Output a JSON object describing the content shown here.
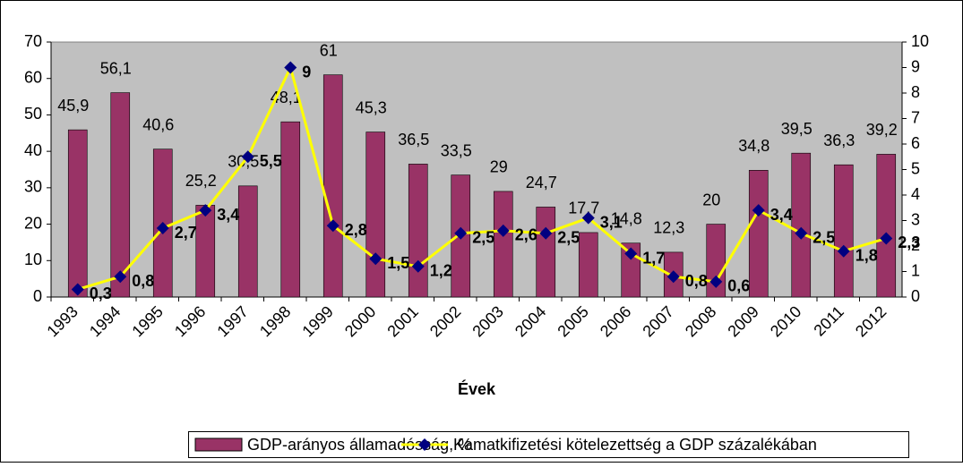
{
  "chart_data": {
    "type": "bar-line",
    "x_label": "Évek",
    "categories": [
      "1993",
      "1994",
      "1995",
      "1996",
      "1997",
      "1998",
      "1999",
      "2000",
      "2001",
      "2002",
      "2003",
      "2004",
      "2005",
      "2006",
      "2007",
      "2008",
      "2009",
      "2010",
      "2011",
      "2012"
    ],
    "series": [
      {
        "name": "GDP-arányos államadósság, %",
        "type": "bar",
        "color": "#993366",
        "values": [
          45.9,
          56.1,
          40.6,
          25.2,
          30.5,
          48.1,
          61,
          45.3,
          36.5,
          33.5,
          29,
          24.7,
          17.7,
          14.8,
          12.3,
          20,
          34.8,
          39.5,
          36.3,
          39.2
        ],
        "value_labels": [
          "45,9",
          "56,1",
          "40,6",
          "25,2",
          "30,5",
          "48,1",
          "61",
          "45,3",
          "36,5",
          "33,5",
          "29",
          "24,7",
          "17,7",
          "14,8",
          "12,3",
          "20",
          "34,8",
          "39,5",
          "36,3",
          "39,2"
        ]
      },
      {
        "name": "Kamatkifizetési kötelezettség a GDP százalékában",
        "type": "line",
        "axis": "y2",
        "color": "#ffff00",
        "marker_color": "#000080",
        "values": [
          0.3,
          0.8,
          2.7,
          3.4,
          5.5,
          9,
          2.8,
          1.5,
          1.2,
          2.5,
          2.6,
          2.5,
          3.1,
          1.7,
          0.8,
          0.6,
          3.4,
          2.5,
          1.8,
          2.3
        ],
        "value_labels": [
          "0,3",
          "0,8",
          "2,7",
          "3,4",
          "5,5",
          "9",
          "2,8",
          "1,5",
          "1,2",
          "2,5",
          "2,6",
          "2,5",
          "3,1",
          "1,7",
          "0,8",
          "0,6",
          "3,4",
          "2,5",
          "1,8",
          "2,3"
        ]
      }
    ],
    "ylim": [
      0,
      70
    ],
    "yticks": [
      0,
      10,
      20,
      30,
      40,
      50,
      60,
      70
    ],
    "y2lim": [
      0,
      10
    ],
    "y2ticks": [
      0,
      1,
      2,
      3,
      4,
      5,
      6,
      7,
      8,
      9,
      10
    ],
    "plot_background": "#c0c0c0",
    "legend": "bottom"
  }
}
